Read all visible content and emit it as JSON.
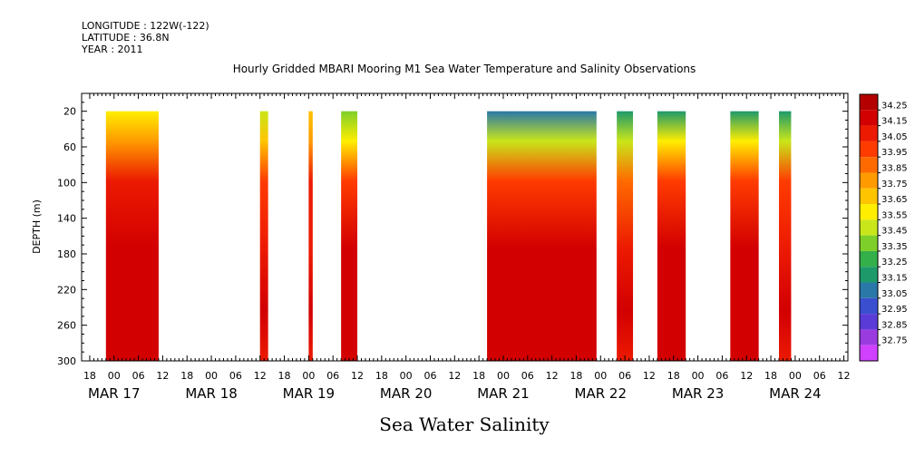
{
  "header": {
    "longitude": "LONGITUDE : 122W(-122)",
    "latitude": "LATITUDE : 36.8N",
    "year": "YEAR : 2011",
    "title": "Hourly Gridded MBARI Mooring M1 Sea Water Temperature and Salinity Observations"
  },
  "chart_data": {
    "type": "heatmap",
    "title": "Hourly Gridded MBARI Mooring M1 Sea Water Temperature and Salinity Observations",
    "xlabel": "Sea Water Salinity",
    "ylabel": "DEPTH (m)",
    "x_time_range_hours": [
      -8,
      181
    ],
    "x_origin": "MAR 17 00 2011",
    "ylim": [
      300,
      0
    ],
    "y_ticks": [
      20,
      60,
      100,
      140,
      180,
      220,
      260,
      300
    ],
    "hour_tick_labels": [
      "18",
      "00",
      "06",
      "12",
      "18",
      "00",
      "06",
      "12",
      "18",
      "00",
      "06",
      "12",
      "18",
      "00",
      "06",
      "12",
      "18",
      "00",
      "06",
      "12",
      "18",
      "00",
      "06",
      "12",
      "18",
      "00",
      "06",
      "12",
      "18",
      "00",
      "06",
      "12"
    ],
    "date_labels": [
      "MAR 17",
      "MAR 18",
      "MAR 19",
      "MAR 20",
      "MAR 21",
      "MAR 22",
      "MAR 23",
      "MAR 24"
    ],
    "colorbar": {
      "levels": [
        "34.25",
        "34.15",
        "34.05",
        "33.95",
        "33.85",
        "33.75",
        "33.65",
        "33.55",
        "33.45",
        "33.35",
        "33.25",
        "33.15",
        "33.05",
        "32.95",
        "32.85",
        "32.75"
      ],
      "colors": [
        "#b40000",
        "#d20000",
        "#ec1a00",
        "#ff3b00",
        "#ff6a00",
        "#ff9a00",
        "#ffc400",
        "#ffee00",
        "#c9e61a",
        "#7fcf2a",
        "#33b04a",
        "#1e9a6a",
        "#2a78a8",
        "#3a4fd0",
        "#5a3bd8",
        "#9a3be0",
        "#d040ff"
      ]
    },
    "segments": [
      {
        "start_hour": -2,
        "end_hour": 11,
        "surface": 33.55,
        "deep": 34.2
      },
      {
        "start_hour": 36,
        "end_hour": 38,
        "surface": 33.45,
        "deep": 34.15
      },
      {
        "start_hour": 48,
        "end_hour": 49,
        "surface": 33.65,
        "deep": 34.15
      },
      {
        "start_hour": 56,
        "end_hour": 60,
        "surface": 33.35,
        "deep": 34.2
      },
      {
        "start_hour": 92,
        "end_hour": 119,
        "surface": 33.05,
        "deep": 34.2
      },
      {
        "start_hour": 124,
        "end_hour": 128,
        "surface": 33.15,
        "deep": 34.15
      },
      {
        "start_hour": 134,
        "end_hour": 141,
        "surface": 33.2,
        "deep": 34.2
      },
      {
        "start_hour": 152,
        "end_hour": 159,
        "surface": 33.2,
        "deep": 34.2
      },
      {
        "start_hour": 164,
        "end_hour": 167,
        "surface": 33.2,
        "deep": 34.15
      }
    ]
  }
}
